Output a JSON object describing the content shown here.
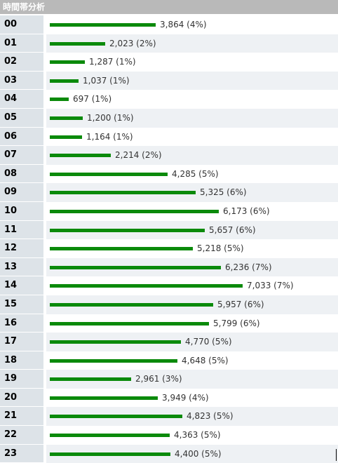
{
  "header": {
    "title": "時間帯分析"
  },
  "chart_data": {
    "type": "bar",
    "orientation": "horizontal",
    "title": "時間帯分析",
    "categories": [
      "00",
      "01",
      "02",
      "03",
      "04",
      "05",
      "06",
      "07",
      "08",
      "09",
      "10",
      "11",
      "12",
      "13",
      "14",
      "15",
      "16",
      "17",
      "18",
      "19",
      "20",
      "21",
      "22",
      "23"
    ],
    "values": [
      3864,
      2023,
      1287,
      1037,
      697,
      1200,
      1164,
      2214,
      4285,
      5325,
      6173,
      5657,
      5218,
      6236,
      7033,
      5957,
      5799,
      4770,
      4648,
      2961,
      3949,
      4823,
      4363,
      4400
    ],
    "labels": [
      "3,864 (4%)",
      "2,023 (2%)",
      "1,287 (1%)",
      "1,037 (1%)",
      "697 (1%)",
      "1,200 (1%)",
      "1,164 (1%)",
      "2,214 (2%)",
      "4,285 (5%)",
      "5,325 (6%)",
      "6,173 (6%)",
      "5,657 (6%)",
      "5,218 (5%)",
      "6,236 (7%)",
      "7,033 (7%)",
      "5,957 (6%)",
      "5,799 (6%)",
      "4,770 (5%)",
      "4,648 (5%)",
      "2,961 (3%)",
      "3,949 (4%)",
      "4,823 (5%)",
      "4,363 (5%)",
      "4,400 (5%)"
    ],
    "bar_color": "#0b8a0b",
    "grid": false
  }
}
